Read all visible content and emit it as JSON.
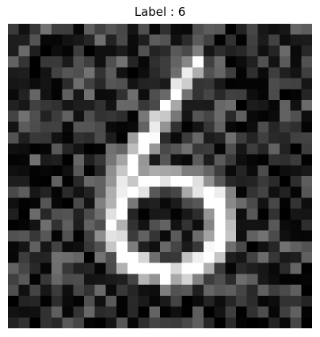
{
  "title": "Label : 6",
  "image": {
    "description_colormap": "gray",
    "rows": 28,
    "cols": 28
  }
}
